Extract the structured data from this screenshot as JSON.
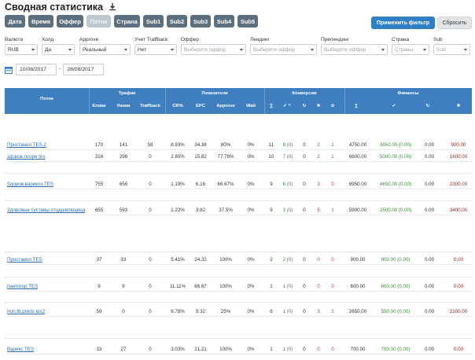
{
  "page": {
    "title": "Сводная статистика",
    "download_icon": "download-icon"
  },
  "tabs": [
    {
      "label": "Дата",
      "active": false
    },
    {
      "label": "Время",
      "active": false
    },
    {
      "label": "Оффер",
      "active": false
    },
    {
      "label": "Поток",
      "active": true
    },
    {
      "label": "Страна",
      "active": false
    },
    {
      "label": "Sub1",
      "active": false
    },
    {
      "label": "Sub2",
      "active": false
    },
    {
      "label": "Sub3",
      "active": false
    },
    {
      "label": "Sub4",
      "active": false
    },
    {
      "label": "Sub5",
      "active": false
    }
  ],
  "actions": {
    "apply_label": "Применить фильтр",
    "reset_label": "Сбросить"
  },
  "filters": [
    {
      "label": "Валюта",
      "value": "RUB"
    },
    {
      "label": "Холд",
      "value": "Да"
    },
    {
      "label": "Approve",
      "value": "Реальный"
    },
    {
      "label": "Учет Traffback",
      "value": "Нет"
    },
    {
      "label": "Оффер",
      "placeholder": "Выберите оффер"
    },
    {
      "label": "Лендинг",
      "placeholder": "Выберите оффер"
    },
    {
      "label": "Прелендинг",
      "placeholder": "Выберите оффер"
    },
    {
      "label": "Страна",
      "placeholder": "Страны"
    },
    {
      "label": "Sub",
      "placeholder": "Sub"
    }
  ],
  "dates": {
    "from": "10/08/2017",
    "to": "28/08/2017",
    "separator": "-"
  },
  "table": {
    "col_flow": "Поток",
    "groups": {
      "traffic": "Трафик",
      "indicators": "Показатели",
      "conversions": "Конверсии",
      "finance": "Финансы"
    },
    "subheaders": {
      "clicks": "Клики",
      "uniques": "Уники",
      "traffback": "Traffback",
      "cr": "CR%",
      "epc": "EPC",
      "approve": "Approve",
      "wait": "Wait",
      "conv_sum": "∑",
      "conv_ok": "✔ ^",
      "conv_hold": "↻",
      "conv_cancel": "✖",
      "conv_trash": "⊘",
      "fin_sum": "∑",
      "fin_ok": "✔",
      "fin_hold": "↻",
      "fin_cancel": "✖"
    },
    "rows": [
      {
        "flow": "Простанол TES 2",
        "clicks": "170",
        "uniques": "141",
        "traffback": "58",
        "cr": "8.93%",
        "epc": "34.38",
        "approve": "80%",
        "wait": "0%",
        "conv_sum": "11",
        "conv_ok": "8 (0)",
        "conv_hold": "0",
        "conv_cancel": "2",
        "conv_trash": "1",
        "fin_sum": "4750.00",
        "fin_ok": "3850.00 (0.00)",
        "fin_hold": "0.00",
        "fin_cancel": "900.00"
      },
      {
        "flow": "здоров.псори tes",
        "clicks": "316",
        "uniques": "296",
        "traffback": "0",
        "cr": "2.85%",
        "epc": "15.82",
        "approve": "77.78%",
        "wait": "0%",
        "conv_sum": "10",
        "conv_ok": "7 (0)",
        "conv_hold": "0",
        "conv_cancel": "2",
        "conv_trash": "1",
        "fin_sum": "6600.00",
        "fin_ok": "5000.00 (0.00)",
        "fin_hold": "0.00",
        "fin_cancel": "1600.00"
      },
      {
        "flow": "Здоров.варикоз TES",
        "clicks": "755",
        "uniques": "656",
        "traffback": "0",
        "cr": "1.19%",
        "epc": "6.16",
        "approve": "66.67%",
        "wait": "0%",
        "conv_sum": "9",
        "conv_ok": "6 (0)",
        "conv_hold": "0",
        "conv_cancel": "3",
        "conv_trash": "0",
        "fin_sum": "6950.00",
        "fin_ok": "4650.00 (0.00)",
        "fin_hold": "0.00",
        "fin_cancel": "2300.00"
      },
      {
        "flow": "Здоровые суставы отцдшвлвщица",
        "clicks": "655",
        "uniques": "593",
        "traffback": "0",
        "cr": "1.22%",
        "epc": "3.82",
        "approve": "37.5%",
        "wait": "0%",
        "conv_sum": "9",
        "conv_ok": "3 (0)",
        "conv_hold": "0",
        "conv_cancel": "5",
        "conv_trash": "1",
        "fin_sum": "5900.00",
        "fin_ok": "2500.00 (0.00)",
        "fin_hold": "0.00",
        "fin_cancel": "3400.00"
      },
      {
        "flow": "Простанол TES",
        "clicks": "37",
        "uniques": "33",
        "traffback": "0",
        "cr": "5.41%",
        "epc": "24.32",
        "approve": "100%",
        "wait": "0%",
        "conv_sum": "2",
        "conv_ok": "2 (0)",
        "conv_hold": "0",
        "conv_cancel": "0",
        "conv_trash": "0",
        "fin_sum": "900.00",
        "fin_ok": "900.00 (0.00)",
        "fin_hold": "0.00",
        "fin_cancel": "0.00"
      },
      {
        "flow": "пантогор TES",
        "clicks": "9",
        "uniques": "9",
        "traffback": "0",
        "cr": "11.11%",
        "epc": "66.67",
        "approve": "100%",
        "wait": "0%",
        "conv_sum": "1",
        "conv_ok": "1 (0)",
        "conv_hold": "0",
        "conv_cancel": "0",
        "conv_trash": "0",
        "fin_sum": "600.00",
        "fin_ok": "600.00 (0.00)",
        "fin_hold": "0.00",
        "fin_cancel": "0.00"
      },
      {
        "flow": "Iron.tb.preds tes2",
        "clicks": "59",
        "uniques": "0",
        "traffback": "0",
        "cr": "6.78%",
        "epc": "9.32",
        "approve": "25%",
        "wait": "0%",
        "conv_sum": "6",
        "conv_ok": "1 (0)",
        "conv_hold": "0",
        "conv_cancel": "3",
        "conv_trash": "2",
        "fin_sum": "2650.00",
        "fin_ok": "550.00 (0.00)",
        "fin_hold": "0.00",
        "fin_cancel": "2100.00"
      },
      {
        "flow": "Варикс TES",
        "clicks": "33",
        "uniques": "27",
        "traffback": "0",
        "cr": "3.03%",
        "epc": "21.21",
        "approve": "100%",
        "wait": "0%",
        "conv_sum": "1",
        "conv_ok": "1 (0)",
        "conv_hold": "0",
        "conv_cancel": "0",
        "conv_trash": "0",
        "fin_sum": "700.00",
        "fin_ok": "700.00 (0.00)",
        "fin_hold": "0.00",
        "fin_cancel": "0.00"
      }
    ]
  },
  "colors": {
    "header": "#3f7fbf",
    "tab": "#5b6f7e",
    "tab_active": "#bfc8cf",
    "apply": "#2e7fc3",
    "ok": "#3c8a3c",
    "cancel": "#c0392b"
  }
}
